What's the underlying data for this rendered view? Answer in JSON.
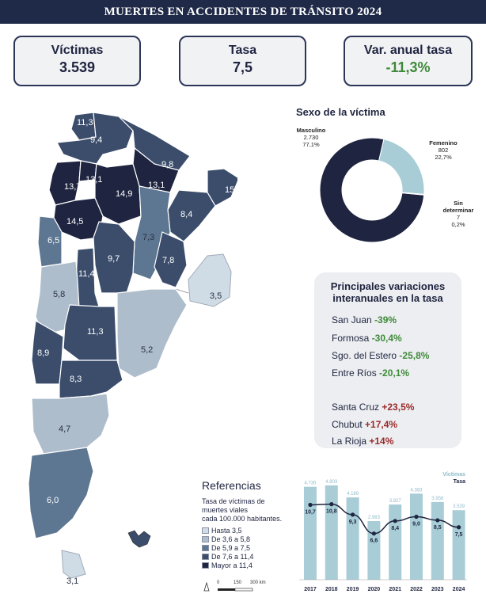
{
  "header": {
    "title": "MUERTES EN ACCIDENTES DE TRÁNSITO 2024"
  },
  "kpis": [
    {
      "label": "Víctimas",
      "value": "3.539"
    },
    {
      "label": "Tasa",
      "value": "7,5"
    },
    {
      "label": "Var. anual tasa",
      "value": "-11,3%"
    }
  ],
  "colors": {
    "hasta_3_5": "#cfdce5",
    "de_3_6_a_5_8": "#aebdcc",
    "de_5_9_a_7_5": "#5d7691",
    "de_7_6_a_11_4": "#3b4d6b",
    "mayor_11_4": "#1f2540",
    "bar": "#a8cdd7",
    "positive": "#3f8a3a",
    "negative": "#9b2a2a"
  },
  "map": {
    "province_rates": [
      "11,3",
      "9,4",
      "9,8",
      "13,1",
      "13,7",
      "14,9",
      "13,1",
      "15,5",
      "14,5",
      "8,4",
      "6,5",
      "7,3",
      "9,7",
      "7,8",
      "11,4",
      "5,8",
      "3,5",
      "11,3",
      "5,2",
      "8,9",
      "8,3",
      "4,7",
      "6,0",
      "3,1"
    ]
  },
  "sex": {
    "title": "Sexo de la víctima",
    "masculino": {
      "label": "Masculino",
      "count": "2.730",
      "pct": "77,1%"
    },
    "femenino": {
      "label": "Femenino",
      "count": "802",
      "pct": "22,7%"
    },
    "sin_det": {
      "label1": "Sin",
      "label2": "determinar",
      "count": "7",
      "pct": "0,2%"
    }
  },
  "variations": {
    "title1": "Principales variaciones",
    "title2": "interanuales en la tasa",
    "items": [
      {
        "name": "San Juan",
        "value": "-39%"
      },
      {
        "name": "Formosa",
        "value": "-30,4%"
      },
      {
        "name": "Sgo. del Estero",
        "value": "-25,8%"
      },
      {
        "name": "Entre Ríos",
        "value": "-20,1%"
      },
      {
        "name": "Santa Cruz",
        "value": "+23,5%"
      },
      {
        "name": "Chubut",
        "value": "+17,4%"
      },
      {
        "name": "La Rioja",
        "value": "+14%"
      }
    ]
  },
  "legend": {
    "title": "Referencias",
    "subtitle1": "Tasa de víctimas de",
    "subtitle2": "muertes viales",
    "subtitle3": "cada 100.000 habitantes.",
    "items": [
      "Hasta 3,5",
      "De 3,6 a 5,8",
      "De 5,9 a 7,5",
      "De 7,6 a 11,4",
      "Mayor a 11,4"
    ],
    "scale": [
      "0",
      "150",
      "300 km"
    ]
  },
  "chart_data": {
    "type": "bar",
    "categories": [
      "2017",
      "2018",
      "2019",
      "2020",
      "2021",
      "2022",
      "2023",
      "2024"
    ],
    "series": [
      {
        "name": "Víctimas",
        "type": "bar",
        "values": [
          4730,
          4803,
          4189,
          2983,
          3827,
          4383,
          3956,
          3539
        ],
        "labels": [
          "4.730",
          "4.803",
          "4.189",
          "2.983",
          "3.827",
          "4.383",
          "3.956",
          "3.539"
        ]
      },
      {
        "name": "Tasa",
        "type": "line",
        "values": [
          10.7,
          10.8,
          9.3,
          6.6,
          8.4,
          9.0,
          8.5,
          7.5
        ],
        "labels": [
          "10,7",
          "10,8",
          "9,3",
          "6,6",
          "8,4",
          "9,0",
          "8,5",
          "7,5"
        ]
      }
    ],
    "title": "",
    "xlabel": "",
    "ylabel": "",
    "ylim_bar": [
      0,
      5000
    ],
    "ylim_line": [
      0,
      12
    ],
    "legend_position": "top-right",
    "grid": false
  }
}
